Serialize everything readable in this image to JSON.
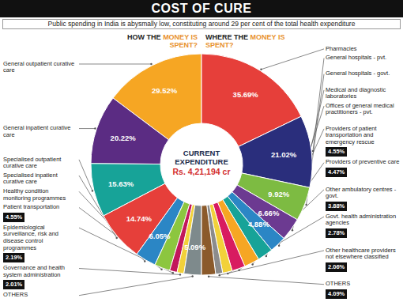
{
  "title": "COST OF CURE",
  "subtitle": "Public spending in India is abysmally low, constituting around 29 per cent of the total health expenditure",
  "annotations": {
    "center_title": "CURRENT EXPENDITURE",
    "center_value": "Rs. 4,21,194 cr"
  },
  "chart_data": [
    {
      "type": "pie",
      "title": "HOW THE MONEY IS SPENT?",
      "categories": [
        "General outpatient curative care",
        "General inpatient curative care",
        "Specialised outpatient curative care",
        "Specialised inpatient curative care",
        "Healthy condition monitoring programmes",
        "Patient transportation",
        "Epidemiological surveillance, risk and disease control programmes",
        "Governance and health system administration",
        "OTHERS"
      ],
      "values": [
        29.52,
        20.22,
        15.63,
        14.74,
        6.05,
        4.55,
        2.19,
        2.01,
        5.09
      ],
      "value_labels": [
        "29.52%",
        "20.22%",
        "15.63%",
        "14.74%",
        "6.05%",
        "4.55%",
        "2.19%",
        "2.01%",
        "5.09%"
      ],
      "colors": [
        "#F6A623",
        "#5B2C83",
        "#17A398",
        "#E63F3A",
        "#2B86C5",
        "#8CC63F",
        "#C2185B",
        "#F2D13A",
        "#7E8A8C"
      ],
      "data_labels": true
    },
    {
      "type": "pie",
      "title": "WHERE THE MONEY IS SPENT?",
      "categories": [
        "Pharmacies",
        "General hospitals - pvt.",
        "General hospitals - govt.",
        "Medical and diagnostic laboratories",
        "Offices of general medical practitioners - pvt.",
        "Providers of patient transportation and emergency rescue",
        "Providers of preventive care",
        "Other ambulatory centres - govt.",
        "Govt. health administration agencies",
        "Other healthcare providers not elsewhere classified",
        "OTHERS"
      ],
      "values": [
        35.69,
        21.02,
        9.92,
        6.66,
        4.88,
        4.55,
        4.47,
        3.88,
        2.78,
        2.06,
        4.09
      ],
      "value_labels": [
        "35.69%",
        "21.02%",
        "9.92%",
        "6.66%",
        "4.88%",
        "4.55%",
        "4.47%",
        "3.88%",
        "2.78%",
        "2.06%",
        "4.09%"
      ],
      "colors": [
        "#E63F3A",
        "#2A2E7C",
        "#7DBB42",
        "#6C3A91",
        "#2B86C5",
        "#17A398",
        "#F6A623",
        "#D81B60",
        "#F2D13A",
        "#8C8C8C",
        "#8B5A2B"
      ],
      "data_labels": true
    }
  ]
}
